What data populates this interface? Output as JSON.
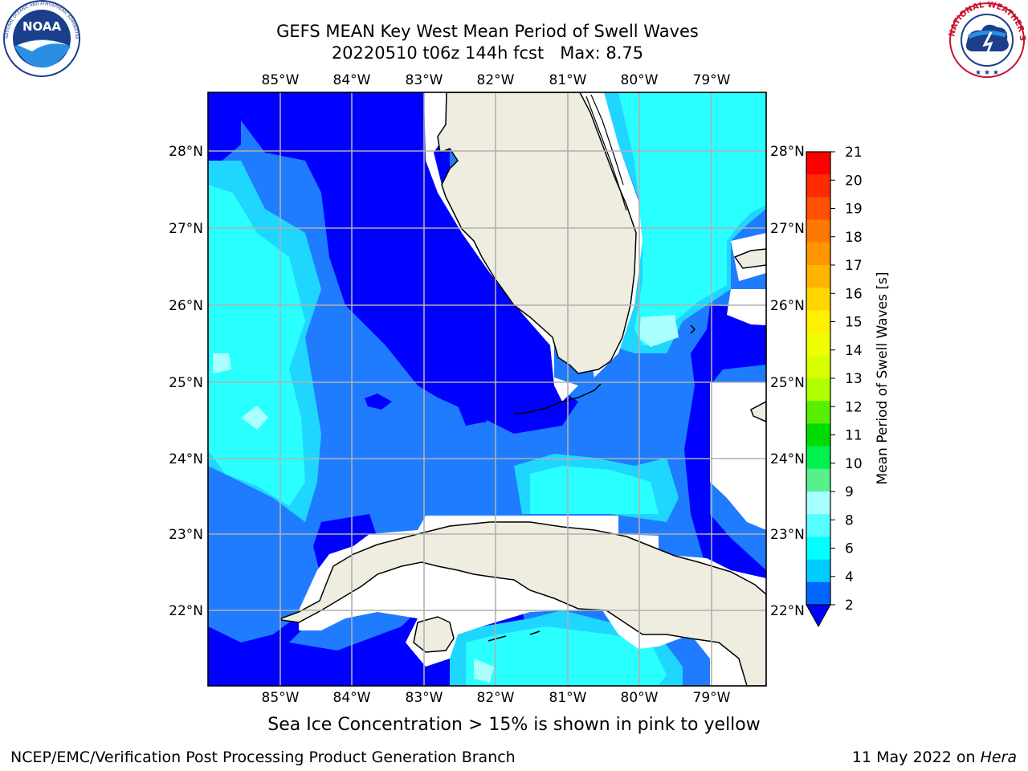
{
  "title": {
    "line1": "GEFS MEAN Key West Mean Period of Swell Waves",
    "line2": "20220510 t06z 144h fcst   Max: 8.75"
  },
  "map": {
    "lon_labels": [
      "85°W",
      "84°W",
      "83°W",
      "82°W",
      "81°W",
      "80°W",
      "79°W"
    ],
    "lat_labels": [
      "28°N",
      "27°N",
      "26°N",
      "25°N",
      "24°N",
      "23°N",
      "22°N"
    ]
  },
  "colorbar": {
    "label": "Mean Period of Swell Waves [s]",
    "ticks": [
      "21",
      "20",
      "19",
      "18",
      "17",
      "16",
      "15",
      "14",
      "13",
      "12",
      "11",
      "10",
      "9",
      "8",
      "6",
      "4",
      "2"
    ],
    "colors": [
      "#ff0000",
      "#ff2a00",
      "#ff5000",
      "#ff7800",
      "#ff9600",
      "#ffb400",
      "#ffd600",
      "#fff000",
      "#f0ff00",
      "#d8ff00",
      "#b0ff00",
      "#58f000",
      "#00dc00",
      "#00f050",
      "#58f08c",
      "#a8ffff",
      "#55ffff",
      "#00ffff",
      "#00ccff",
      "#0066ff"
    ],
    "under_color": "#0000ff"
  },
  "colors": {
    "deep_blue": "#0000ff",
    "medium_blue": "#1f7cff",
    "light_blue": "#1fd6ff",
    "cyan": "#2affff",
    "pale_cyan": "#aaffff",
    "land": "#eeede0",
    "grid": "#b0b0b0"
  },
  "footer": {
    "sea_ice_note": "Sea Ice Concentration > 15% is shown in pink to yellow",
    "credit": "NCEP/EMC/Verification Post Processing Product Generation Branch",
    "date": "11 May 2022 on",
    "machine": "Hera"
  },
  "logos": {
    "left": "NOAA",
    "left_ring": "NATIONAL OCEANIC AND ATMOSPHERIC ADMINISTRATION · U.S. DEPARTMENT OF COMMERCE",
    "right_ring": "NATIONAL WEATHER SERVICE"
  }
}
